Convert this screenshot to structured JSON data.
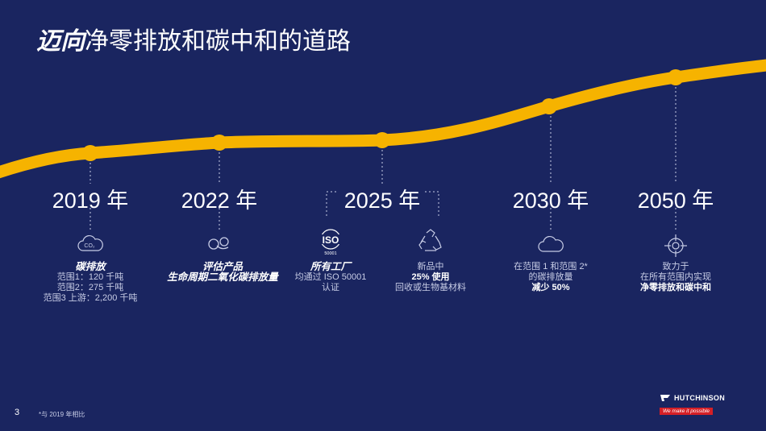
{
  "title": {
    "emphasis": "迈向",
    "rest": "净零排放和碳中和的道路"
  },
  "colors": {
    "background": "#1a2560",
    "curve": "#f6b300",
    "text": "#ffffff",
    "subtext": "#c8cde6",
    "brand_red": "#d51f26"
  },
  "milestones": [
    {
      "year": "2019 年",
      "icon": "co2-cloud-icon",
      "lines": [
        {
          "text": "碳排放",
          "style": "bi"
        },
        {
          "text": "范围1：120 千吨"
        },
        {
          "text": "范围2：275 千吨"
        },
        {
          "text": "范围3 上游：2,200 千吨"
        }
      ]
    },
    {
      "year": "2022 年",
      "icon": "co2-molecule-icon",
      "lines": [
        {
          "text": "评估产品",
          "style": "bi"
        },
        {
          "text": "生命周期二氧化碳排放量",
          "style": "bi"
        }
      ]
    },
    {
      "year": "2025 年",
      "icon": "iso-icon",
      "iso_text": "ISO",
      "iso_sub": "50001",
      "lines": [
        {
          "text": "所有工厂",
          "style": "bi"
        },
        {
          "text": "均通过 ISO 50001"
        },
        {
          "text": "认证"
        }
      ]
    },
    {
      "icon": "recycle-icon",
      "lines": [
        {
          "text": "新品中"
        },
        {
          "text": "25% 使用",
          "style": "b"
        },
        {
          "text": "回收或生物基材料"
        }
      ]
    },
    {
      "year": "2030 年",
      "icon": "cloud-icon",
      "lines": [
        {
          "text": "在范围 1 和范围 2*"
        },
        {
          "text": "的碳排放量"
        },
        {
          "text": "减少 50%",
          "style": "b"
        }
      ]
    },
    {
      "year": "2050 年",
      "icon": "target-icon",
      "lines": [
        {
          "text": "致力于"
        },
        {
          "text": "在所有范围内实现"
        },
        {
          "text": "净零排放和碳中和",
          "style": "b"
        }
      ]
    }
  ],
  "footer": {
    "page": "3",
    "footnote": "*与 2019 年相比",
    "brand": "HUTCHINSON",
    "tagline": "We make it possible"
  }
}
